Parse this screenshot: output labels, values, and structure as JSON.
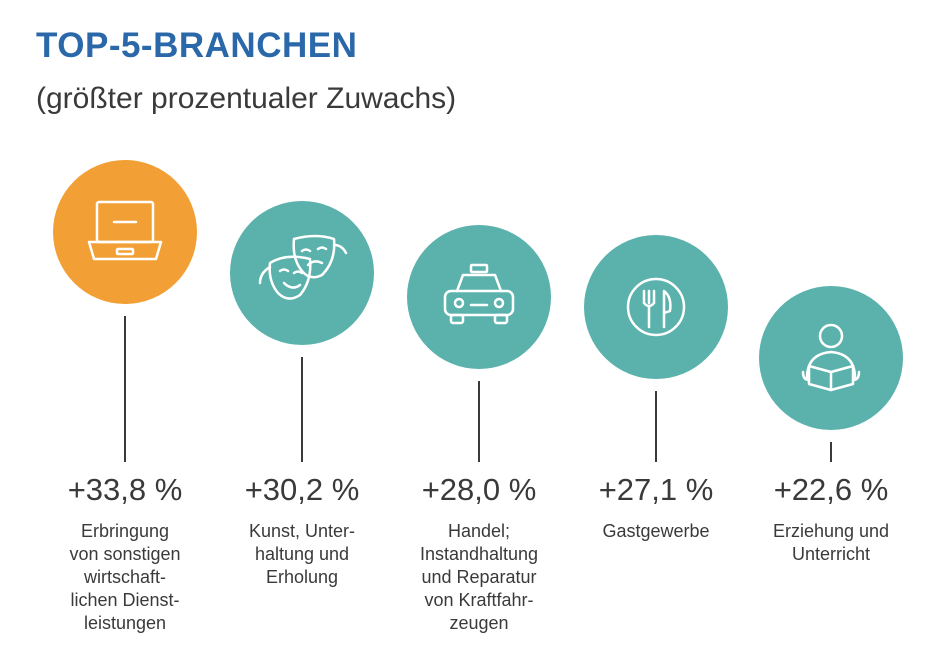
{
  "title": "TOP-5-BRANCHEN",
  "subtitle": "(größter prozentualer Zuwachs)",
  "colors": {
    "title": "#2a68aa",
    "highlight": "#f2a035",
    "teal": "#5bb2ac",
    "text": "#3a3a3a"
  },
  "chart_data": {
    "type": "bar",
    "categories": [
      "Erbringung von sonstigen wirtschaft-lichen Dienst-leistungen",
      "Kunst, Unter-haltung und Erholung",
      "Handel; Instandhaltung und Reparatur von Kraftfahr-zeugen",
      "Gastgewerbe",
      "Erziehung und Unterricht"
    ],
    "values": [
      33.8,
      30.2,
      28.0,
      27.1,
      22.6
    ],
    "unit": "%",
    "title": "TOP-5-BRANCHEN",
    "subtitle": "(größter prozentualer Zuwachs)",
    "grid": false
  },
  "items": [
    {
      "value_label": "+33,8 %",
      "label": "Erbringung\nvon sonstigen\nwirtschaft-\nlichen Dienst-\nleistungen",
      "icon": "laptop-icon",
      "color": "#f2a035"
    },
    {
      "value_label": "+30,2 %",
      "label": "Kunst, Unter-\nhaltung und\nErholung",
      "icon": "theater-masks-icon",
      "color": "#5bb2ac"
    },
    {
      "value_label": "+28,0 %",
      "label": "Handel;\nInstandhaltung\nund Reparatur\nvon Kraftfahr-\nzeugen",
      "icon": "taxi-icon",
      "color": "#5bb2ac"
    },
    {
      "value_label": "+27,1 %",
      "label": "Gastgewerbe",
      "icon": "cutlery-plate-icon",
      "color": "#5bb2ac"
    },
    {
      "value_label": "+22,6 %",
      "label": "Erziehung und\nUnterricht",
      "icon": "person-reading-icon",
      "color": "#5bb2ac"
    }
  ]
}
